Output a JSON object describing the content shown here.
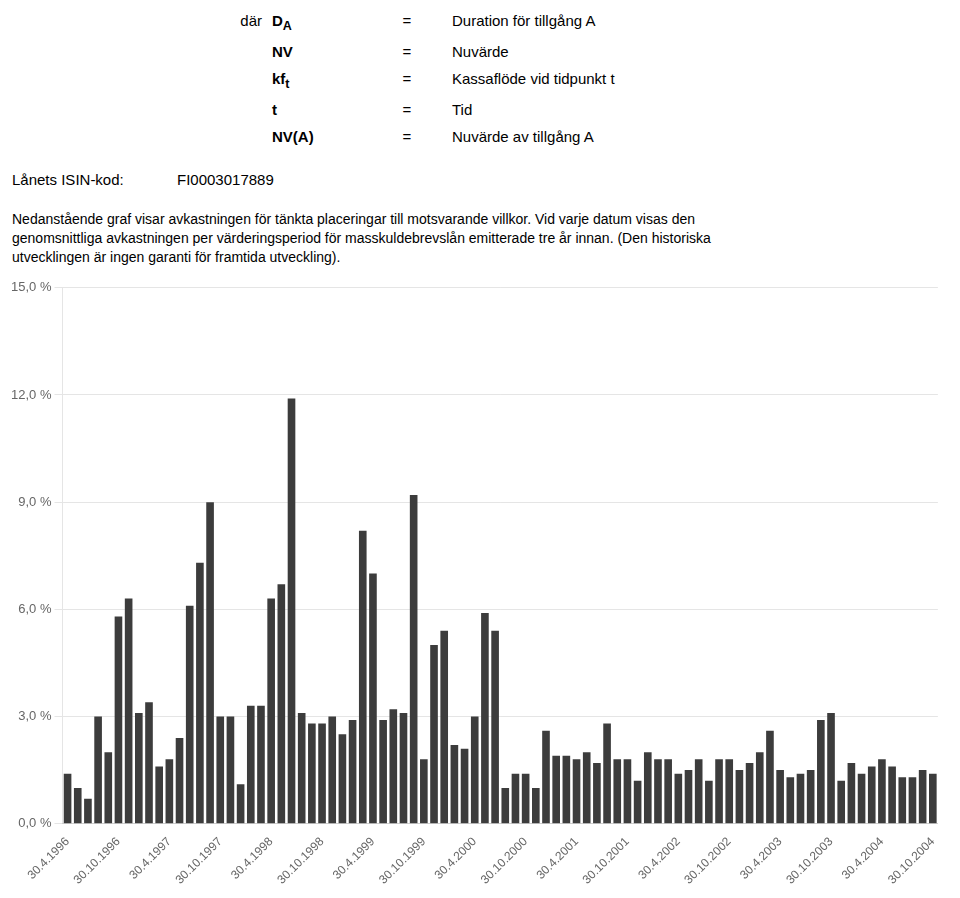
{
  "chart_data": {
    "type": "bar",
    "annotations": [
      [
        "där",
        [
          "D",
          "A"
        ],
        "=",
        "Duration för tillgång A"
      ],
      [
        "",
        "NV",
        "=",
        "Nuvärde"
      ],
      [
        "",
        [
          "kf",
          "t"
        ],
        "=",
        "Kassaflöde vid tidpunkt t"
      ],
      [
        "",
        "t",
        "=",
        "Tid"
      ],
      [
        "",
        "NV(A)",
        "=",
        "Nuvärde av tillgång A"
      ],
      [
        "Lånets ISIN-kod:",
        "FI0003017889"
      ],
      "Nedanstående graf visar avkastningen för tänkta placeringar till motsvarande villkor. Vid varje datum visas den\ngenomsnittliga avkastningen per värderingsperiod för masskuldebrevslån emitterade tre år innan. (Den historiska\nutvecklingen är ingen garanti för framtida utveckling)."
    ],
    "categories": [
      "30.4.1996",
      null,
      null,
      null,
      null,
      "30.10.1996",
      null,
      null,
      null,
      null,
      "30.4.1997",
      null,
      null,
      null,
      null,
      "30.10.1997",
      null,
      null,
      null,
      null,
      "30.4.1998",
      null,
      null,
      null,
      null,
      "30.10.1998",
      null,
      null,
      null,
      null,
      "30.4.1999",
      null,
      null,
      null,
      null,
      "30.10.1999",
      null,
      null,
      null,
      null,
      "30.4.2000",
      null,
      null,
      null,
      null,
      "30.10.2000",
      null,
      null,
      null,
      null,
      "30.4.2001",
      null,
      null,
      null,
      null,
      "30.10.2001",
      null,
      null,
      null,
      null,
      "30.4.2002",
      null,
      null,
      null,
      null,
      "30.10.2002",
      null,
      null,
      null,
      null,
      "30.4.2003",
      null,
      null,
      null,
      null,
      "30.10.2003",
      null,
      null,
      null,
      null,
      "30.4.2004",
      null,
      null,
      null,
      null,
      "30.10.2004"
    ],
    "values": [
      0.014,
      0.01,
      0.007,
      0.03,
      0.02,
      0.058,
      0.063,
      0.031,
      0.034,
      0.016,
      0.018,
      0.024,
      0.061,
      0.073,
      0.09,
      0.03,
      0.03,
      0.011,
      0.033,
      0.033,
      0.063,
      0.067,
      0.119,
      0.031,
      0.028,
      0.028,
      0.03,
      0.025,
      0.029,
      0.082,
      0.07,
      0.029,
      0.032,
      0.031,
      0.092,
      0.018,
      0.05,
      0.054,
      0.022,
      0.021,
      0.03,
      0.059,
      0.054,
      0.01,
      0.014,
      0.014,
      0.01,
      0.026,
      0.019,
      0.019,
      0.018,
      0.02,
      0.017,
      0.028,
      0.018,
      0.018,
      0.012,
      0.02,
      0.018,
      0.018,
      0.014,
      0.015,
      0.018,
      0.012,
      0.018,
      0.018,
      0.015,
      0.017,
      0.02,
      0.026,
      0.015,
      0.013,
      0.014,
      0.015,
      0.029,
      0.031,
      0.012,
      0.017,
      0.014,
      0.016,
      0.018,
      0.016,
      0.013,
      0.013,
      0.015,
      0.014
    ],
    "color": "#3c3c3c",
    "ylim": [
      0,
      0.15
    ],
    "yticks": [
      {
        "value": 0.0,
        "label": "0,0 %"
      },
      {
        "value": 0.03,
        "label": "3,0 %"
      },
      {
        "value": 0.06,
        "label": "6,0 %"
      },
      {
        "value": 0.09,
        "label": "9,0 %"
      },
      {
        "value": 0.12,
        "label": "12,0 %"
      },
      {
        "value": 0.15,
        "label": "15,0 %"
      }
    ],
    "grid": true
  }
}
